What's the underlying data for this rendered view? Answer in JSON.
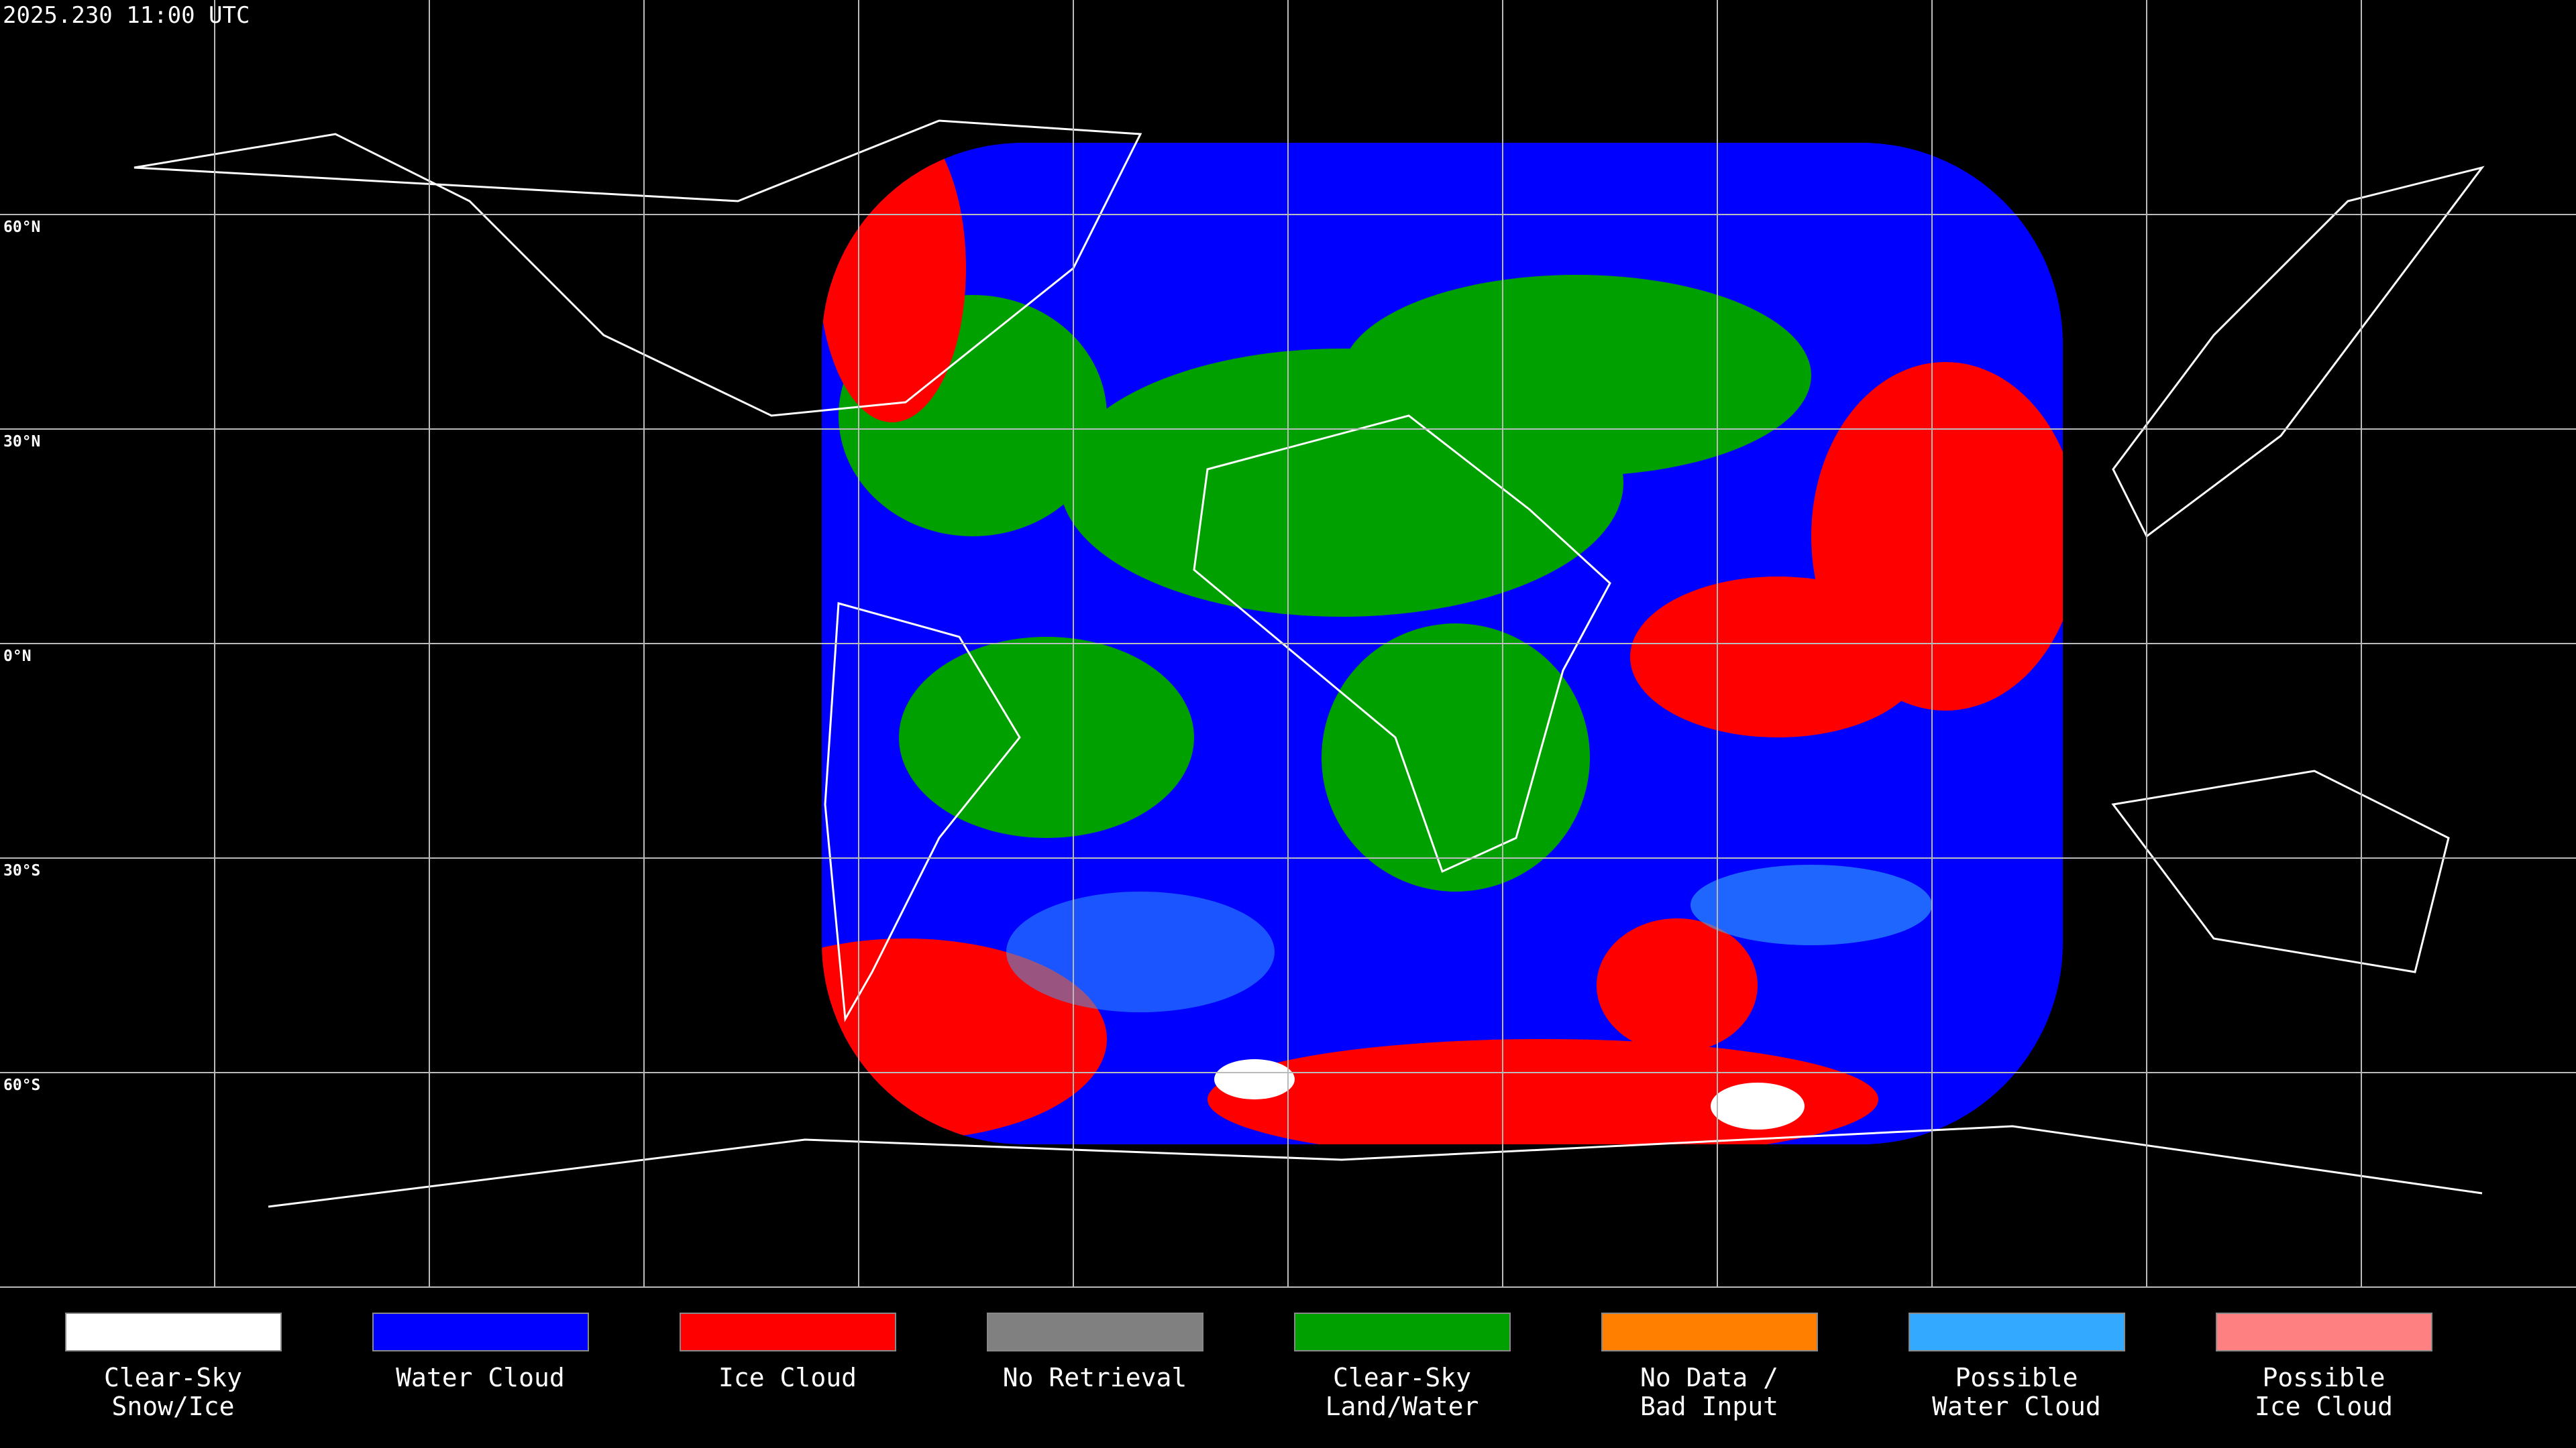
{
  "header": {
    "timestamp": "2025.230 11:00 UTC"
  },
  "map": {
    "latitude_labels": [
      "60°N",
      "30°N",
      "0°N",
      "30°S",
      "60°S"
    ]
  },
  "legend": [
    {
      "label": [
        "Clear-Sky",
        "Snow/Ice"
      ],
      "color": "#ffffff"
    },
    {
      "label": [
        "Water Cloud"
      ],
      "color": "#0000ff"
    },
    {
      "label": [
        "Ice Cloud"
      ],
      "color": "#ff0000"
    },
    {
      "label": [
        "No Retrieval"
      ],
      "color": "#808080"
    },
    {
      "label": [
        "Clear-Sky",
        "Land/Water"
      ],
      "color": "#00a000"
    },
    {
      "label": [
        "No Data /",
        "Bad Input"
      ],
      "color": "#ff8000"
    },
    {
      "label": [
        "Possible",
        "Water Cloud"
      ],
      "color": "#33aaff"
    },
    {
      "label": [
        "Possible",
        "Ice Cloud"
      ],
      "color": "#ff8080"
    }
  ]
}
